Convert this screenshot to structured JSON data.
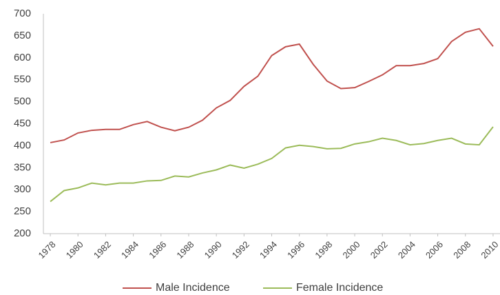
{
  "chart_data": {
    "type": "line",
    "x": [
      1978,
      1979,
      1980,
      1981,
      1982,
      1983,
      1984,
      1985,
      1986,
      1987,
      1988,
      1989,
      1990,
      1991,
      1992,
      1993,
      1994,
      1995,
      1996,
      1997,
      1998,
      1999,
      2000,
      2001,
      2002,
      2003,
      2004,
      2005,
      2006,
      2007,
      2008,
      2009,
      2010
    ],
    "series": [
      {
        "name": "Male Incidence",
        "color": "#c0504d",
        "values": [
          407,
          413,
          429,
          435,
          437,
          437,
          448,
          455,
          442,
          434,
          442,
          458,
          486,
          503,
          535,
          558,
          605,
          625,
          631,
          585,
          547,
          530,
          532,
          546,
          561,
          582,
          582,
          587,
          598,
          637,
          658,
          666,
          626
        ]
      },
      {
        "name": "Female Incidence",
        "color": "#9bbb59",
        "values": [
          273,
          298,
          304,
          315,
          311,
          315,
          315,
          320,
          321,
          331,
          329,
          338,
          345,
          356,
          349,
          358,
          371,
          395,
          401,
          398,
          393,
          394,
          404,
          409,
          417,
          412,
          402,
          405,
          412,
          417,
          404,
          402,
          443
        ]
      }
    ],
    "xlim": [
      1977.5,
      2010.5
    ],
    "xticks": [
      1978,
      1980,
      1982,
      1984,
      1986,
      1988,
      1990,
      1992,
      1994,
      1996,
      1998,
      2000,
      2002,
      2004,
      2006,
      2008,
      2010
    ],
    "ylim": [
      200,
      700
    ],
    "yticks": [
      200,
      250,
      300,
      350,
      400,
      450,
      500,
      550,
      600,
      650,
      700
    ],
    "grid": false,
    "legend": "bottom"
  }
}
